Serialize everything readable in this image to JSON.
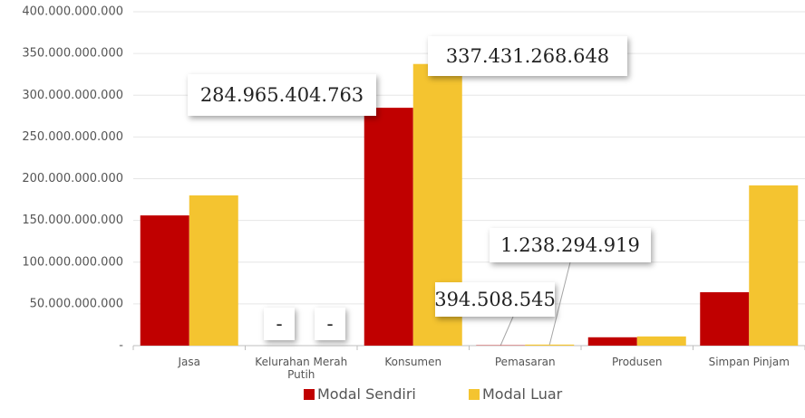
{
  "chart_data": {
    "type": "bar",
    "categories": [
      "Jasa",
      "Kelurahan Merah Putih",
      "Konsumen",
      "Pemasaran",
      "Produsen",
      "Simpan Pinjam"
    ],
    "series": [
      {
        "name": "Modal Sendiri",
        "color": "#c00000",
        "values": [
          156000000000,
          0,
          284965404763,
          394508545,
          10000000000,
          64000000000
        ],
        "value_labels": [
          null,
          "-",
          "284.965.404.763",
          "394.508.545",
          null,
          null
        ]
      },
      {
        "name": "Modal Luar",
        "color": "#f4c430",
        "values": [
          180000000000,
          0,
          337431268648,
          1238294919,
          11000000000,
          192000000000
        ],
        "value_labels": [
          null,
          "-",
          "337.431.268.648",
          "1.238.294.919",
          null,
          null
        ]
      }
    ],
    "ylim": [
      0,
      400000000000
    ],
    "yticks": [
      {
        "value": 0,
        "label": "-"
      },
      {
        "value": 50000000000,
        "label": "50.000.000.000"
      },
      {
        "value": 100000000000,
        "label": "100.000.000.000"
      },
      {
        "value": 150000000000,
        "label": "150.000.000.000"
      },
      {
        "value": 200000000000,
        "label": "200.000.000.000"
      },
      {
        "value": 250000000000,
        "label": "250.000.000.000"
      },
      {
        "value": 300000000000,
        "label": "300.000.000.000"
      },
      {
        "value": 350000000000,
        "label": "350.000.000.000"
      },
      {
        "value": 400000000000,
        "label": "400.000.000.000"
      }
    ],
    "grid": true,
    "legend": "bottom"
  }
}
